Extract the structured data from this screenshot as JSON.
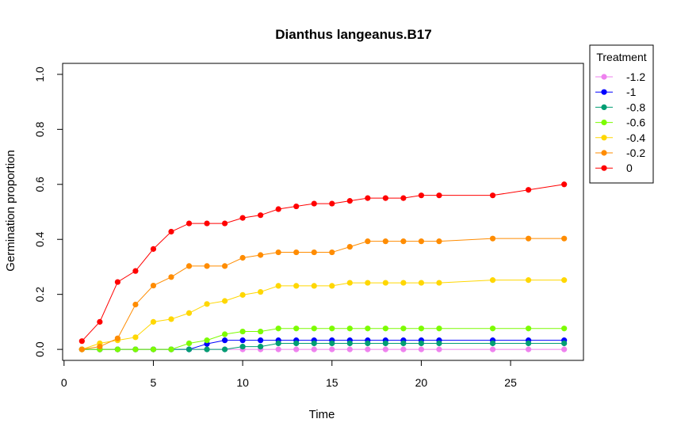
{
  "chart_data": {
    "type": "line",
    "title": "Dianthus langeanus.B17",
    "xlabel": "Time",
    "ylabel": "Germination proportion",
    "xlim": [
      1,
      28
    ],
    "ylim": [
      0,
      1
    ],
    "xticks": [
      0,
      5,
      10,
      15,
      20,
      25
    ],
    "yticks": [
      0.0,
      0.2,
      0.4,
      0.6,
      0.8,
      1.0
    ],
    "ytick_labels": [
      "0.0",
      "0.2",
      "0.4",
      "0.6",
      "0.8",
      "1.0"
    ],
    "grid": false,
    "legend": {
      "title": "Treatment",
      "position": "right"
    },
    "x": [
      1,
      2,
      3,
      4,
      5,
      6,
      7,
      8,
      9,
      10,
      11,
      12,
      13,
      14,
      15,
      16,
      17,
      18,
      19,
      20,
      21,
      24,
      26,
      28
    ],
    "series": [
      {
        "name": "-1.2",
        "color": "#ee82ee",
        "values": [
          0,
          0,
          0,
          0,
          0,
          0,
          0,
          0,
          0,
          0,
          0,
          0,
          0,
          0,
          0,
          0,
          0,
          0,
          0,
          0,
          0,
          0,
          0,
          0
        ]
      },
      {
        "name": "-1",
        "color": "#0000ff",
        "values": [
          0,
          0,
          0,
          0,
          0,
          0,
          0,
          0.02,
          0.033,
          0.033,
          0.033,
          0.033,
          0.033,
          0.033,
          0.033,
          0.033,
          0.033,
          0.033,
          0.033,
          0.033,
          0.033,
          0.033,
          0.033,
          0.033
        ]
      },
      {
        "name": "-0.8",
        "color": "#009e73",
        "values": [
          0,
          0,
          0,
          0,
          0,
          0,
          0,
          0,
          0,
          0.01,
          0.01,
          0.022,
          0.022,
          0.022,
          0.022,
          0.022,
          0.022,
          0.022,
          0.022,
          0.022,
          0.022,
          0.022,
          0.022,
          0.022
        ]
      },
      {
        "name": "-0.6",
        "color": "#7cfc00",
        "values": [
          0,
          0,
          0,
          0,
          0,
          0,
          0.022,
          0.033,
          0.055,
          0.065,
          0.065,
          0.076,
          0.076,
          0.076,
          0.076,
          0.076,
          0.076,
          0.076,
          0.076,
          0.076,
          0.076,
          0.076,
          0.076,
          0.076
        ]
      },
      {
        "name": "-0.4",
        "color": "#ffd700",
        "values": [
          0,
          0.022,
          0.033,
          0.044,
          0.1,
          0.11,
          0.132,
          0.165,
          0.176,
          0.198,
          0.209,
          0.231,
          0.231,
          0.231,
          0.231,
          0.242,
          0.242,
          0.242,
          0.242,
          0.242,
          0.242,
          0.252,
          0.252,
          0.252
        ]
      },
      {
        "name": "-0.2",
        "color": "#ff8c00",
        "values": [
          0,
          0.01,
          0.04,
          0.163,
          0.232,
          0.263,
          0.303,
          0.303,
          0.303,
          0.333,
          0.343,
          0.353,
          0.353,
          0.353,
          0.353,
          0.373,
          0.393,
          0.393,
          0.393,
          0.393,
          0.393,
          0.403,
          0.403,
          0.403
        ]
      },
      {
        "name": "0",
        "color": "#ff0000",
        "values": [
          0.03,
          0.1,
          0.245,
          0.285,
          0.365,
          0.428,
          0.458,
          0.458,
          0.458,
          0.478,
          0.488,
          0.51,
          0.52,
          0.53,
          0.53,
          0.54,
          0.55,
          0.55,
          0.55,
          0.56,
          0.56,
          0.56,
          0.58,
          0.6
        ]
      }
    ]
  }
}
